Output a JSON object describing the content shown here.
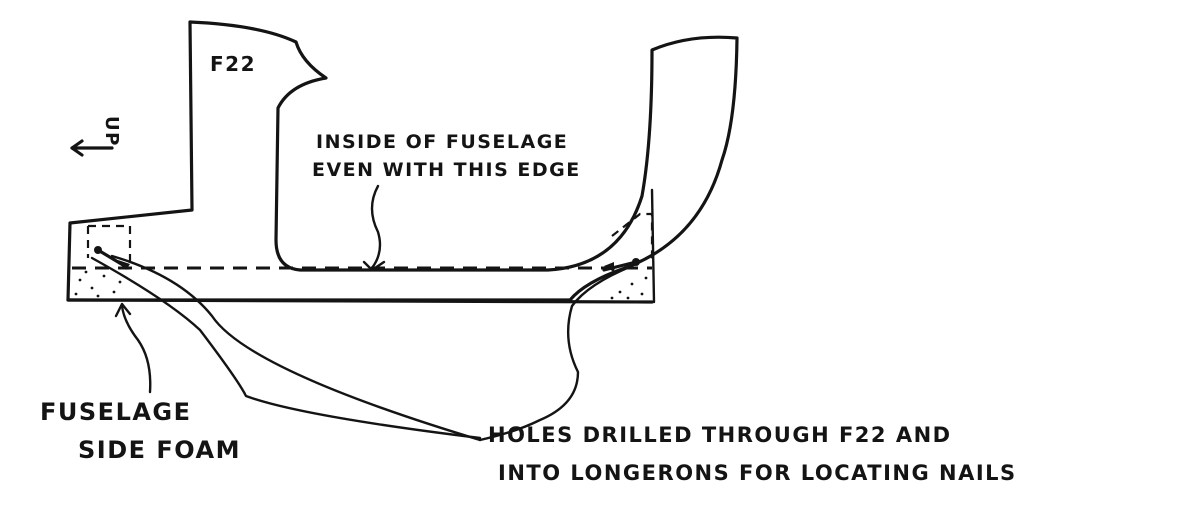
{
  "part_label": "F22",
  "direction_label": "UP",
  "annotations": {
    "inside_edge": [
      "INSIDE OF FUSELAGE",
      "EVEN WITH THIS EDGE"
    ],
    "foam": [
      "FUSELAGE",
      "SIDE FOAM"
    ],
    "holes": [
      "HOLES DRILLED THROUGH F22 AND",
      "INTO LONGERONS FOR LOCATING NAILS"
    ]
  }
}
